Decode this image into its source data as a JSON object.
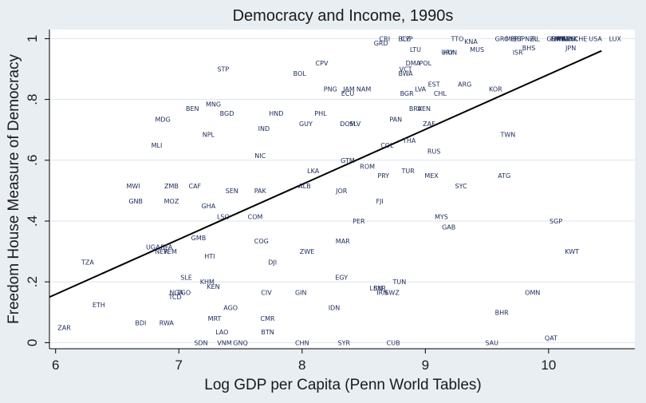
{
  "chart_data": {
    "type": "scatter",
    "title": "Democracy and Income, 1990s",
    "xlabel": "Log GDP per Capita (Penn World Tables)",
    "ylabel": "Freedom House Measure of Democracy",
    "xlim": [
      5.95,
      10.7
    ],
    "ylim": [
      -0.02,
      1.03
    ],
    "xticks": [
      "6",
      "7",
      "8",
      "9",
      "10"
    ],
    "yticks": [
      "0",
      ".2",
      ".4",
      ".6",
      ".8",
      "1"
    ],
    "grid": "horizontal",
    "point_style": "country-code labels",
    "colors": {
      "background": "#e9eef3",
      "plot": "#ffffff",
      "grid": "#dbe5ec",
      "text": "#1a2a5a",
      "line": "#000000"
    },
    "fit_line": {
      "x": [
        5.95,
        10.43
      ],
      "y": [
        0.15,
        0.96
      ]
    },
    "points": [
      {
        "label": "CRI",
        "x": 8.67,
        "y": 1.0
      },
      {
        "label": "GRD",
        "x": 8.64,
        "y": 0.985
      },
      {
        "label": "BLZ",
        "x": 8.83,
        "y": 1.0
      },
      {
        "label": "CYP",
        "x": 8.85,
        "y": 1.0
      },
      {
        "label": "TTO",
        "x": 9.26,
        "y": 1.0
      },
      {
        "label": "KNA",
        "x": 9.37,
        "y": 0.99
      },
      {
        "label": "MUS",
        "x": 9.42,
        "y": 0.965
      },
      {
        "label": "GRC",
        "x": 9.62,
        "y": 1.0
      },
      {
        "label": "MLT",
        "x": 9.7,
        "y": 1.0
      },
      {
        "label": "PRT",
        "x": 9.74,
        "y": 1.0
      },
      {
        "label": "ESP",
        "x": 9.76,
        "y": 1.0
      },
      {
        "label": "NZL",
        "x": 9.86,
        "y": 1.0
      },
      {
        "label": "IRL",
        "x": 9.89,
        "y": 1.0
      },
      {
        "label": "GBR",
        "x": 10.04,
        "y": 1.0
      },
      {
        "label": "FIN",
        "x": 10.06,
        "y": 1.0
      },
      {
        "label": "SWE",
        "x": 10.08,
        "y": 1.0
      },
      {
        "label": "ITA",
        "x": 10.1,
        "y": 1.0
      },
      {
        "label": "FRA",
        "x": 10.12,
        "y": 1.0
      },
      {
        "label": "NLD",
        "x": 10.14,
        "y": 1.0
      },
      {
        "label": "AUS",
        "x": 10.16,
        "y": 1.0
      },
      {
        "label": "DNK",
        "x": 10.18,
        "y": 1.0
      },
      {
        "label": "CHE",
        "x": 10.26,
        "y": 1.0
      },
      {
        "label": "USA",
        "x": 10.38,
        "y": 1.0
      },
      {
        "label": "LUX",
        "x": 10.54,
        "y": 1.0
      },
      {
        "label": "BHS",
        "x": 9.84,
        "y": 0.97
      },
      {
        "label": "JPN",
        "x": 10.18,
        "y": 0.97
      },
      {
        "label": "ISR",
        "x": 9.75,
        "y": 0.955
      },
      {
        "label": "LTU",
        "x": 8.92,
        "y": 0.965
      },
      {
        "label": "HUN",
        "x": 9.2,
        "y": 0.955
      },
      {
        "label": "URY",
        "x": 9.18,
        "y": 0.955
      },
      {
        "label": "CPV",
        "x": 8.16,
        "y": 0.92
      },
      {
        "label": "STP",
        "x": 7.36,
        "y": 0.9
      },
      {
        "label": "BOL",
        "x": 7.98,
        "y": 0.885
      },
      {
        "label": "DMA",
        "x": 8.9,
        "y": 0.92
      },
      {
        "label": "POL",
        "x": 9.0,
        "y": 0.92
      },
      {
        "label": "VCT",
        "x": 8.84,
        "y": 0.9
      },
      {
        "label": "BWA",
        "x": 8.84,
        "y": 0.885
      },
      {
        "label": "EST",
        "x": 9.07,
        "y": 0.85
      },
      {
        "label": "ARG",
        "x": 9.32,
        "y": 0.85
      },
      {
        "label": "KOR",
        "x": 9.57,
        "y": 0.835
      },
      {
        "label": "PNG",
        "x": 8.23,
        "y": 0.835
      },
      {
        "label": "JAM",
        "x": 8.38,
        "y": 0.835
      },
      {
        "label": "NAM",
        "x": 8.5,
        "y": 0.835
      },
      {
        "label": "ECU",
        "x": 8.37,
        "y": 0.82
      },
      {
        "label": "LVA",
        "x": 8.96,
        "y": 0.835
      },
      {
        "label": "BGR",
        "x": 8.85,
        "y": 0.82
      },
      {
        "label": "CHL",
        "x": 9.12,
        "y": 0.82
      },
      {
        "label": "MNG",
        "x": 7.28,
        "y": 0.785
      },
      {
        "label": "BEN",
        "x": 7.11,
        "y": 0.77
      },
      {
        "label": "BGD",
        "x": 7.39,
        "y": 0.755
      },
      {
        "label": "HND",
        "x": 7.79,
        "y": 0.755
      },
      {
        "label": "PHL",
        "x": 8.15,
        "y": 0.755
      },
      {
        "label": "BRA",
        "x": 8.92,
        "y": 0.77
      },
      {
        "label": "VEN",
        "x": 8.99,
        "y": 0.77
      },
      {
        "label": "MDG",
        "x": 6.87,
        "y": 0.735
      },
      {
        "label": "PAN",
        "x": 8.76,
        "y": 0.735
      },
      {
        "label": "GUY",
        "x": 8.03,
        "y": 0.72
      },
      {
        "label": "DOM",
        "x": 8.37,
        "y": 0.72
      },
      {
        "label": "SLV",
        "x": 8.43,
        "y": 0.72
      },
      {
        "label": "ZAF",
        "x": 9.03,
        "y": 0.72
      },
      {
        "label": "IND",
        "x": 7.69,
        "y": 0.705
      },
      {
        "label": "NPL",
        "x": 7.24,
        "y": 0.685
      },
      {
        "label": "TWN",
        "x": 9.67,
        "y": 0.685
      },
      {
        "label": "THA",
        "x": 8.87,
        "y": 0.665
      },
      {
        "label": "MLI",
        "x": 6.82,
        "y": 0.65
      },
      {
        "label": "COL",
        "x": 8.69,
        "y": 0.65
      },
      {
        "label": "RUS",
        "x": 9.07,
        "y": 0.63
      },
      {
        "label": "NIC",
        "x": 7.66,
        "y": 0.615
      },
      {
        "label": "GTM",
        "x": 8.37,
        "y": 0.6
      },
      {
        "label": "ROM",
        "x": 8.53,
        "y": 0.58
      },
      {
        "label": "LKA",
        "x": 8.09,
        "y": 0.565
      },
      {
        "label": "TUR",
        "x": 8.86,
        "y": 0.565
      },
      {
        "label": "PRY",
        "x": 8.66,
        "y": 0.55
      },
      {
        "label": "MEX",
        "x": 9.05,
        "y": 0.55
      },
      {
        "label": "ATG",
        "x": 9.64,
        "y": 0.55
      },
      {
        "label": "MWI",
        "x": 6.63,
        "y": 0.515
      },
      {
        "label": "ZMB",
        "x": 6.94,
        "y": 0.515
      },
      {
        "label": "CAF",
        "x": 7.13,
        "y": 0.515
      },
      {
        "label": "ALB",
        "x": 8.02,
        "y": 0.515
      },
      {
        "label": "SYC",
        "x": 9.29,
        "y": 0.515
      },
      {
        "label": "SEN",
        "x": 7.43,
        "y": 0.5
      },
      {
        "label": "PAK",
        "x": 7.66,
        "y": 0.5
      },
      {
        "label": "JOR",
        "x": 8.32,
        "y": 0.5
      },
      {
        "label": "GNB",
        "x": 6.65,
        "y": 0.465
      },
      {
        "label": "MOZ",
        "x": 6.94,
        "y": 0.465
      },
      {
        "label": "FJI",
        "x": 8.63,
        "y": 0.465
      },
      {
        "label": "GHA",
        "x": 7.24,
        "y": 0.45
      },
      {
        "label": "LSO",
        "x": 7.36,
        "y": 0.415
      },
      {
        "label": "COM",
        "x": 7.62,
        "y": 0.415
      },
      {
        "label": "MYS",
        "x": 9.13,
        "y": 0.415
      },
      {
        "label": "PER",
        "x": 8.46,
        "y": 0.4
      },
      {
        "label": "SGP",
        "x": 10.06,
        "y": 0.4
      },
      {
        "label": "GAB",
        "x": 9.19,
        "y": 0.38
      },
      {
        "label": "GMB",
        "x": 7.16,
        "y": 0.345
      },
      {
        "label": "COG",
        "x": 7.67,
        "y": 0.335
      },
      {
        "label": "MAR",
        "x": 8.33,
        "y": 0.335
      },
      {
        "label": "UGA",
        "x": 6.79,
        "y": 0.315
      },
      {
        "label": "BFA",
        "x": 6.9,
        "y": 0.315
      },
      {
        "label": "NER",
        "x": 6.86,
        "y": 0.3
      },
      {
        "label": "YEM",
        "x": 6.93,
        "y": 0.3
      },
      {
        "label": "ZWE",
        "x": 8.04,
        "y": 0.3
      },
      {
        "label": "KWT",
        "x": 10.19,
        "y": 0.3
      },
      {
        "label": "TZA",
        "x": 6.26,
        "y": 0.265
      },
      {
        "label": "HTI",
        "x": 7.25,
        "y": 0.285
      },
      {
        "label": "DJI",
        "x": 7.76,
        "y": 0.265
      },
      {
        "label": "SLE",
        "x": 7.06,
        "y": 0.215
      },
      {
        "label": "EGY",
        "x": 8.32,
        "y": 0.215
      },
      {
        "label": "KHM",
        "x": 7.23,
        "y": 0.2
      },
      {
        "label": "TUN",
        "x": 8.79,
        "y": 0.2
      },
      {
        "label": "KEN",
        "x": 7.28,
        "y": 0.185
      },
      {
        "label": "LBN",
        "x": 8.6,
        "y": 0.18
      },
      {
        "label": "SYR",
        "x": 8.63,
        "y": 0.18
      },
      {
        "label": "IRN",
        "x": 8.65,
        "y": 0.165
      },
      {
        "label": "SWZ",
        "x": 8.73,
        "y": 0.165
      },
      {
        "label": "NGA",
        "x": 6.98,
        "y": 0.165
      },
      {
        "label": "TGO",
        "x": 7.04,
        "y": 0.165
      },
      {
        "label": "CIV",
        "x": 7.71,
        "y": 0.165
      },
      {
        "label": "GIN",
        "x": 7.99,
        "y": 0.165
      },
      {
        "label": "OMN",
        "x": 9.87,
        "y": 0.165
      },
      {
        "label": "TCD",
        "x": 6.97,
        "y": 0.15
      },
      {
        "label": "ETH",
        "x": 6.35,
        "y": 0.125
      },
      {
        "label": "AGO",
        "x": 7.42,
        "y": 0.115
      },
      {
        "label": "IDN",
        "x": 8.26,
        "y": 0.115
      },
      {
        "label": "BHR",
        "x": 9.62,
        "y": 0.1
      },
      {
        "label": "MRT",
        "x": 7.29,
        "y": 0.08
      },
      {
        "label": "CMR",
        "x": 7.72,
        "y": 0.08
      },
      {
        "label": "BDI",
        "x": 6.69,
        "y": 0.065
      },
      {
        "label": "RWA",
        "x": 6.9,
        "y": 0.065
      },
      {
        "label": "ZAR",
        "x": 6.07,
        "y": 0.05
      },
      {
        "label": "LAO",
        "x": 7.35,
        "y": 0.035
      },
      {
        "label": "BTN",
        "x": 7.72,
        "y": 0.035
      },
      {
        "label": "QAT",
        "x": 10.02,
        "y": 0.015
      },
      {
        "label": "SDN",
        "x": 7.18,
        "y": 0.0
      },
      {
        "label": "VNM",
        "x": 7.37,
        "y": 0.0
      },
      {
        "label": "GNQ",
        "x": 7.5,
        "y": 0.0
      },
      {
        "label": "CHN",
        "x": 8.0,
        "y": 0.0
      },
      {
        "label": "SYR",
        "x": 8.34,
        "y": 0.0
      },
      {
        "label": "CUB",
        "x": 8.74,
        "y": 0.0
      },
      {
        "label": "SAU",
        "x": 9.54,
        "y": 0.0
      }
    ]
  }
}
